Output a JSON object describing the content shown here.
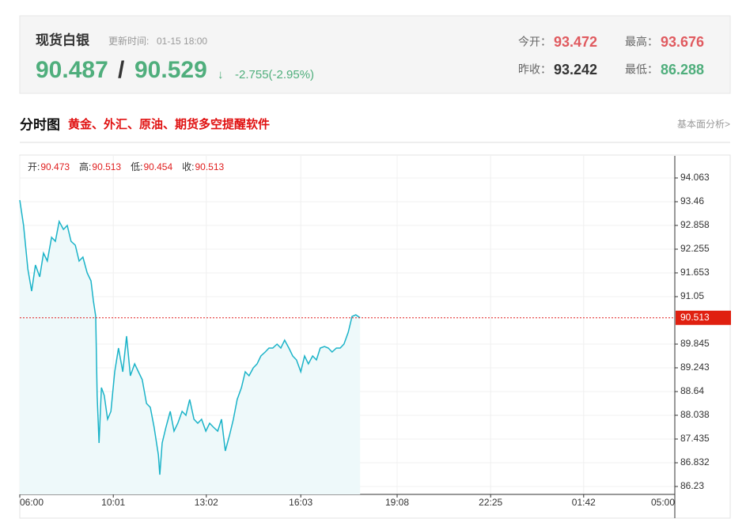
{
  "header": {
    "title": "现货白银",
    "update_label": "更新时间:",
    "update_time": "01-15 18:00",
    "price_bid": "90.487",
    "separator": "/",
    "price_ask": "90.529",
    "arrow": "↓",
    "change": "-2.755(-2.95%)",
    "stats": [
      {
        "label": "今开：",
        "value": "93.472"
      },
      {
        "label": "最高：",
        "value": "93.676"
      },
      {
        "label": "昨收：",
        "value": "93.242"
      },
      {
        "label": "最低：",
        "value": "86.288"
      }
    ]
  },
  "section": {
    "title": "分时图",
    "promo": "黄金、外汇、原油、期货多空提醒软件",
    "link": "基本面分析>"
  },
  "chart_data": {
    "type": "line",
    "color": "#1bb3c8",
    "fill": "#eef9fa",
    "grid": true,
    "ohlc": [
      {
        "label": "开:",
        "value": "90.473"
      },
      {
        "label": "高:",
        "value": "90.513"
      },
      {
        "label": "低:",
        "value": "90.454"
      },
      {
        "label": "收:",
        "value": "90.513"
      }
    ],
    "current": 90.513,
    "x": [
      0,
      8,
      17,
      25,
      33,
      42,
      50,
      58,
      67,
      75,
      83,
      92,
      100,
      108,
      117,
      125,
      133,
      142,
      150,
      155,
      160,
      163,
      167,
      172,
      178,
      185,
      192,
      200,
      208,
      217,
      225,
      233,
      242,
      250,
      258,
      267,
      275,
      283,
      292,
      295,
      300,
      308,
      317,
      325,
      333,
      342,
      350,
      358,
      367,
      375,
      383,
      392,
      400,
      408,
      417,
      425,
      433,
      442,
      450,
      458,
      467,
      475,
      483,
      492,
      500,
      508,
      517,
      525,
      533,
      542,
      550,
      558,
      567,
      575,
      583,
      592,
      600,
      608,
      617,
      625,
      633,
      642,
      650,
      658,
      667,
      675,
      683,
      692,
      700,
      708,
      717
    ],
    "values": [
      93.501,
      92.858,
      91.753,
      91.191,
      91.853,
      91.552,
      92.155,
      91.954,
      92.556,
      92.456,
      92.958,
      92.757,
      92.858,
      92.456,
      92.356,
      91.954,
      92.054,
      91.653,
      91.452,
      90.95,
      90.548,
      88.539,
      87.334,
      88.74,
      88.539,
      87.936,
      88.137,
      89.142,
      89.744,
      89.142,
      90.046,
      89.041,
      89.343,
      89.142,
      88.941,
      88.338,
      88.238,
      87.736,
      87.033,
      86.53,
      87.334,
      87.736,
      88.137,
      87.635,
      87.836,
      88.137,
      88.037,
      88.439,
      87.936,
      87.836,
      87.936,
      87.635,
      87.836,
      87.736,
      87.635,
      87.936,
      87.133,
      87.535,
      87.936,
      88.439,
      88.74,
      89.142,
      89.041,
      89.242,
      89.343,
      89.543,
      89.644,
      89.744,
      89.744,
      89.845,
      89.744,
      89.945,
      89.744,
      89.543,
      89.443,
      89.142,
      89.543,
      89.343,
      89.543,
      89.443,
      89.744,
      89.784,
      89.744,
      89.644,
      89.744,
      89.744,
      89.845,
      90.146,
      90.548,
      90.588,
      90.513
    ],
    "xlim": [
      0,
      1380
    ],
    "xticks": [
      {
        "value": 0,
        "label": "06:00"
      },
      {
        "value": 197,
        "label": "10:01"
      },
      {
        "value": 393,
        "label": "13:02"
      },
      {
        "value": 592,
        "label": "16:03"
      },
      {
        "value": 795,
        "label": "19:08"
      },
      {
        "value": 992,
        "label": "22:25"
      },
      {
        "value": 1188,
        "label": "01:42"
      },
      {
        "value": 1380,
        "label": "05:00"
      }
    ],
    "ylim": [
      86.029,
      94.625
    ],
    "yticks": [
      94.063,
      93.46,
      92.858,
      92.255,
      91.653,
      91.05,
      89.845,
      89.243,
      88.64,
      88.038,
      87.435,
      86.832,
      86.23
    ]
  }
}
